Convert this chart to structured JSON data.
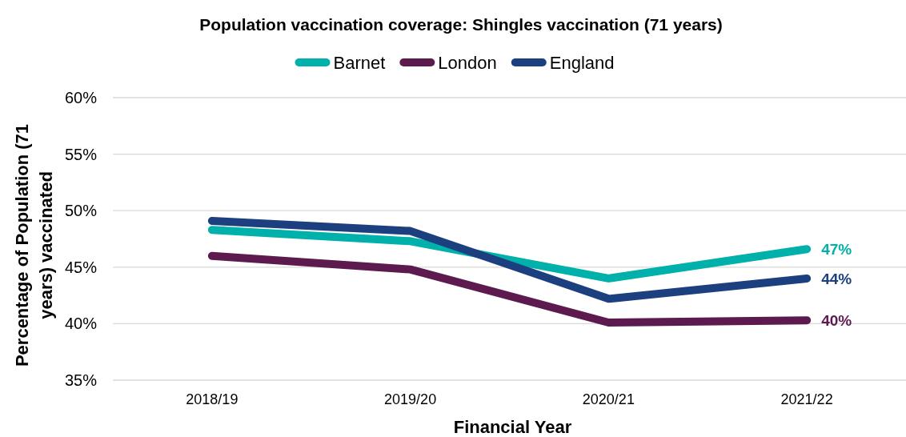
{
  "chart_data": {
    "type": "line",
    "title": "Population vaccination coverage: Shingles vaccination (71 years)",
    "xlabel": "Financial Year",
    "ylabel": "Percentage of Population (71 years) vaccinated",
    "categories": [
      "2018/19",
      "2019/20",
      "2020/21",
      "2021/22"
    ],
    "series": [
      {
        "name": "Barnet",
        "color": "#00b0aa",
        "values": [
          48.3,
          47.3,
          44.0,
          46.6
        ],
        "value_labels": [
          null,
          null,
          null,
          "47%"
        ]
      },
      {
        "name": "London",
        "color": "#5c1a4f",
        "values": [
          46.0,
          44.8,
          40.1,
          40.3
        ],
        "value_labels": [
          null,
          null,
          null,
          "40%"
        ]
      },
      {
        "name": "England",
        "color": "#1c3f7f",
        "values": [
          49.1,
          48.2,
          42.2,
          44.0
        ],
        "value_labels": [
          null,
          null,
          null,
          "44%"
        ]
      }
    ],
    "ylim": [
      35,
      60
    ],
    "yticks": [
      {
        "value": 35,
        "label": "35%"
      },
      {
        "value": 40,
        "label": "40%"
      },
      {
        "value": 45,
        "label": "45%"
      },
      {
        "value": 50,
        "label": "50%"
      },
      {
        "value": 55,
        "label": "55%"
      },
      {
        "value": 60,
        "label": "60%"
      }
    ],
    "grid": "y",
    "legend": "top",
    "marker": "none",
    "line_style": "solid"
  }
}
